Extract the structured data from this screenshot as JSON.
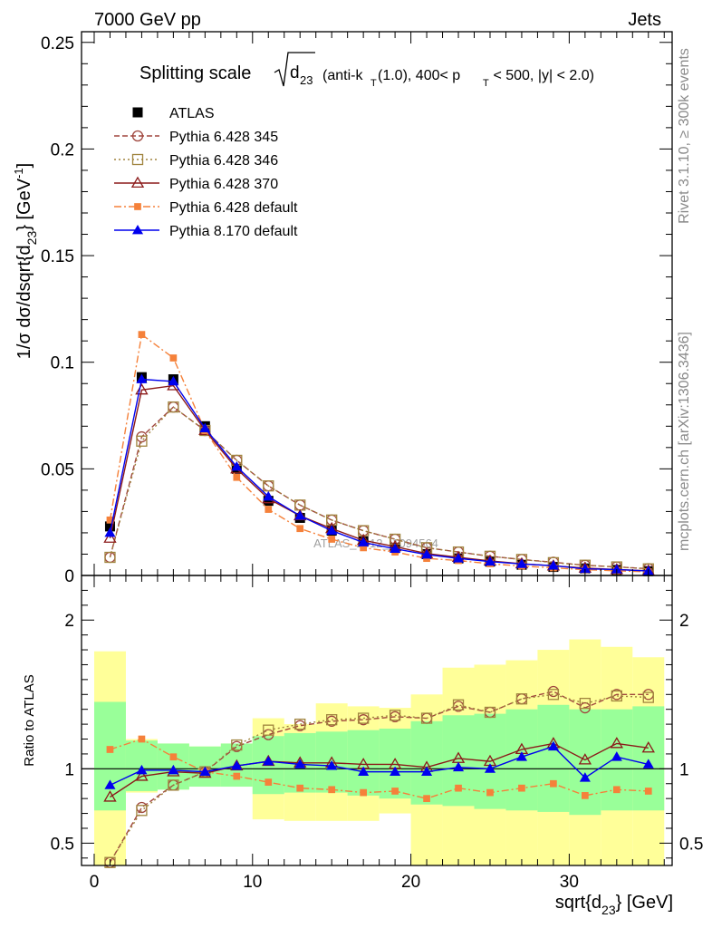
{
  "header": {
    "left": "7000 GeV pp",
    "right": "Jets"
  },
  "side_text": {
    "rivet": "Rivet 3.1.10, ≥ 300k events",
    "mcplots": "mcplots.cern.ch [arXiv:1306.3436]"
  },
  "watermark": "ATLAS_2012_I1094564",
  "title": {
    "main": "Splitting scale",
    "symbol_base": "d",
    "symbol_sub": "23",
    "cut_text": "(anti-k",
    "cut_text_sub": "T",
    "cut_text_rest": "(1.0), 400< p",
    "cut_pt_sub": "T",
    "cut_text_end": " < 500, |y| < 2.0)"
  },
  "colors": {
    "atlas": "#000000",
    "p345": "#a0473e",
    "p346": "#a0843e",
    "p370": "#8b1a1a",
    "pdef": "#f5813a",
    "p8": "#0000ee",
    "band_inner": "#99ff99",
    "band_outer": "#ffff99"
  },
  "chart_data": [
    {
      "type": "line",
      "panel": "main",
      "ylabel": "1/σ dσ/dsqrt{d23} [GeV-1]",
      "ylabel_parts": {
        "a": "1/σ dσ/dsqrt{d",
        "sub": "23",
        "b": "} [GeV",
        "sup": "-1",
        "c": "]"
      },
      "xlim": [
        -0.8,
        36.5
      ],
      "ylim": [
        0,
        0.255
      ],
      "yticks": [
        0,
        0.05,
        0.1,
        0.15,
        0.2,
        0.25
      ],
      "ytick_labels": [
        "0",
        "0.05",
        "0.1",
        "0.15",
        "0.2",
        "0.25"
      ],
      "x": [
        1,
        3,
        5,
        7,
        9,
        11,
        13,
        15,
        17,
        19,
        21,
        23,
        25,
        27,
        29,
        31,
        33,
        35
      ],
      "series": [
        {
          "name": "ATLAS",
          "key": "atlas",
          "marker": "square-filled",
          "line": "none",
          "values": [
            0.023,
            0.093,
            0.092,
            0.07,
            0.05,
            0.035,
            0.027,
            0.021,
            0.016,
            0.013,
            0.01,
            0.008,
            0.0065,
            0.005,
            0.004,
            0.0033,
            0.0026,
            0.002
          ]
        },
        {
          "name": "Pythia 6.428 345",
          "key": "p345",
          "marker": "circle-open",
          "line": "dashed",
          "values": [
            0.0085,
            0.065,
            0.079,
            0.068,
            0.054,
            0.042,
            0.033,
            0.026,
            0.021,
            0.017,
            0.013,
            0.011,
            0.009,
            0.0075,
            0.0062,
            0.0048,
            0.004,
            0.0032
          ]
        },
        {
          "name": "Pythia 6.428 346",
          "key": "p346",
          "marker": "square-open",
          "line": "dotted",
          "values": [
            0.0085,
            0.063,
            0.079,
            0.068,
            0.054,
            0.042,
            0.033,
            0.026,
            0.021,
            0.017,
            0.013,
            0.011,
            0.009,
            0.0075,
            0.006,
            0.0048,
            0.004,
            0.0031
          ]
        },
        {
          "name": "Pythia 6.428 370",
          "key": "p370",
          "marker": "triangle-open",
          "line": "solid",
          "values": [
            0.0175,
            0.087,
            0.089,
            0.068,
            0.05,
            0.036,
            0.028,
            0.022,
            0.0165,
            0.0135,
            0.0103,
            0.0085,
            0.0068,
            0.0055,
            0.0045,
            0.0035,
            0.0028,
            0.0022
          ]
        },
        {
          "name": "Pythia 6.428 default",
          "key": "pdef",
          "marker": "square-small-filled",
          "line": "dashdot",
          "values": [
            0.026,
            0.113,
            0.102,
            0.068,
            0.046,
            0.031,
            0.022,
            0.017,
            0.013,
            0.011,
            0.008,
            0.007,
            0.0055,
            0.0044,
            0.0036,
            0.0027,
            0.0022,
            0.0017
          ]
        },
        {
          "name": "Pythia 8.170 default",
          "key": "p8",
          "marker": "triangle-filled",
          "line": "solid",
          "values": [
            0.02,
            0.092,
            0.091,
            0.069,
            0.051,
            0.037,
            0.028,
            0.021,
            0.0155,
            0.0125,
            0.0098,
            0.008,
            0.0065,
            0.0054,
            0.0046,
            0.0031,
            0.0028,
            0.0021
          ]
        }
      ],
      "legend_position": "top-left"
    },
    {
      "type": "line",
      "panel": "ratio",
      "ylabel": "Ratio to ATLAS",
      "xlabel": "sqrt{d23} [GeV]",
      "xlabel_parts": {
        "a": "sqrt{d",
        "sub": "23",
        "b": "} [GeV]"
      },
      "xlim": [
        -0.8,
        36.5
      ],
      "ylim": [
        0.35,
        2.3
      ],
      "yticks": [
        0.5,
        1,
        2
      ],
      "ytick_labels": [
        "0.5",
        "1",
        "2"
      ],
      "xticks": [
        0,
        10,
        20,
        30
      ],
      "xtick_labels": [
        "0",
        "10",
        "20",
        "30"
      ],
      "band_edges": [
        0,
        2,
        4,
        6,
        8,
        10,
        12,
        14,
        16,
        18,
        20,
        22,
        24,
        26,
        28,
        30,
        32,
        34,
        36
      ],
      "band_inner": [
        [
          0.72,
          1.45
        ],
        [
          0.85,
          1.19
        ],
        [
          0.86,
          1.17
        ],
        [
          0.88,
          1.15
        ],
        [
          0.88,
          1.17
        ],
        [
          0.83,
          1.22
        ],
        [
          0.84,
          1.24
        ],
        [
          0.84,
          1.25
        ],
        [
          0.82,
          1.26
        ],
        [
          0.8,
          1.27
        ],
        [
          0.76,
          1.32
        ],
        [
          0.75,
          1.36
        ],
        [
          0.73,
          1.37
        ],
        [
          0.72,
          1.4
        ],
        [
          0.71,
          1.43
        ],
        [
          0.69,
          1.4
        ],
        [
          0.72,
          1.4
        ],
        [
          0.72,
          1.42
        ]
      ],
      "band_outer": [
        [
          0.3,
          1.79
        ],
        [
          0.84,
          1.2
        ],
        [
          0.86,
          1.17
        ],
        [
          0.88,
          1.15
        ],
        [
          0.88,
          1.17
        ],
        [
          0.66,
          1.34
        ],
        [
          0.65,
          1.3
        ],
        [
          0.65,
          1.44
        ],
        [
          0.65,
          1.42
        ],
        [
          0.7,
          1.41
        ],
        [
          0.2,
          1.5
        ],
        [
          0.3,
          1.68
        ],
        [
          0.1,
          1.7
        ],
        [
          0.1,
          1.73
        ],
        [
          0.1,
          1.8
        ],
        [
          0.1,
          1.87
        ],
        [
          0.1,
          1.82
        ],
        [
          0.1,
          1.75
        ]
      ],
      "x": [
        1,
        3,
        5,
        7,
        9,
        11,
        13,
        15,
        17,
        19,
        21,
        23,
        25,
        27,
        29,
        31,
        33,
        35
      ],
      "series": [
        {
          "name": "Pythia 6.428 345",
          "key": "p345",
          "marker": "circle-open",
          "line": "dashed",
          "values": [
            0.37,
            0.74,
            0.89,
            0.98,
            1.15,
            1.23,
            1.29,
            1.32,
            1.33,
            1.35,
            1.34,
            1.42,
            1.38,
            1.47,
            1.52,
            1.41,
            1.5,
            1.5
          ]
        },
        {
          "name": "Pythia 6.428 346",
          "key": "p346",
          "marker": "square-open",
          "line": "dotted",
          "values": [
            0.37,
            0.72,
            0.89,
            0.98,
            1.16,
            1.26,
            1.3,
            1.33,
            1.34,
            1.36,
            1.34,
            1.43,
            1.38,
            1.47,
            1.5,
            1.44,
            1.49,
            1.48
          ]
        },
        {
          "name": "Pythia 6.428 370",
          "key": "p370",
          "marker": "triangle-open",
          "line": "solid",
          "values": [
            0.81,
            0.95,
            0.98,
            0.97,
            1.02,
            1.05,
            1.04,
            1.04,
            1.03,
            1.03,
            1.01,
            1.07,
            1.05,
            1.13,
            1.17,
            1.06,
            1.17,
            1.14
          ]
        },
        {
          "name": "Pythia 6.428 default",
          "key": "pdef",
          "marker": "square-small-filled",
          "line": "dashdot",
          "values": [
            1.13,
            1.2,
            1.08,
            0.98,
            0.95,
            0.91,
            0.87,
            0.86,
            0.84,
            0.85,
            0.8,
            0.87,
            0.84,
            0.87,
            0.9,
            0.82,
            0.86,
            0.85
          ]
        },
        {
          "name": "Pythia 8.170 default",
          "key": "p8",
          "marker": "triangle-filled",
          "line": "solid",
          "values": [
            0.89,
            0.99,
            0.99,
            0.98,
            1.02,
            1.05,
            1.03,
            1.02,
            0.98,
            0.98,
            0.98,
            1.01,
            1.0,
            1.08,
            1.15,
            0.94,
            1.08,
            1.03
          ]
        }
      ]
    }
  ]
}
